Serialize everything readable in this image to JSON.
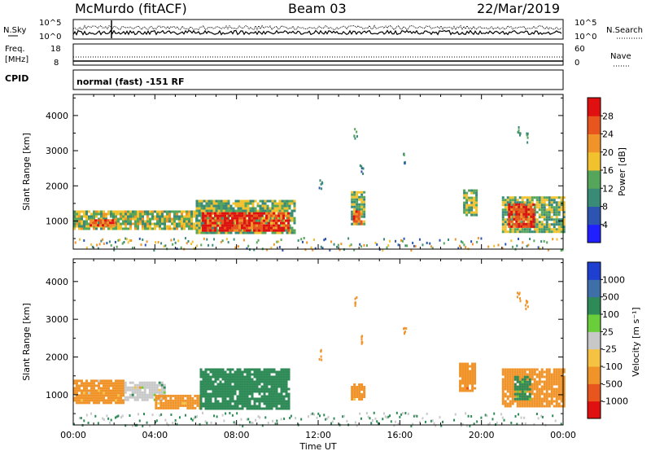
{
  "header": {
    "station": "McMurdo (fitACF)",
    "beam": "Beam 03",
    "date": "22/Mar/2019"
  },
  "top_panels": {
    "nsky_label": "N.Sky",
    "nsky_hi": "10^5",
    "nsky_lo": "10^0",
    "nsearch_label": "N.Search",
    "nsearch_hi": "10^5",
    "nsearch_lo": "10^0",
    "freq_label": "Freq.",
    "freq_unit": "[MHz]",
    "freq_hi": "18",
    "freq_lo": "8",
    "nave_label": "Nave",
    "nave_hi": "60",
    "nave_lo": "0",
    "cpid_label": "CPID",
    "cpid_text": "normal (fast) -151 RF"
  },
  "x_axis": {
    "label": "Time UT",
    "ticks": [
      "00:00",
      "04:00",
      "08:00",
      "12:00",
      "16:00",
      "20:00",
      "00:00"
    ],
    "range_hours": [
      0,
      24
    ]
  },
  "chart_data": [
    {
      "type": "heatmap",
      "name": "power",
      "ylabel": "Slant Range [km]",
      "y_ticks": [
        1000,
        2000,
        3000,
        4000
      ],
      "ylim": [
        200,
        4600
      ],
      "xlim": [
        0,
        24
      ],
      "colorbar": {
        "label": "Power [dB]",
        "ticks": [
          "4",
          "8",
          "12",
          "16",
          "20",
          "24",
          "28"
        ],
        "colors": [
          "#1f1fff",
          "#2d54b0",
          "#3a8a78",
          "#55a55a",
          "#f2c12e",
          "#f0942a",
          "#e8551d",
          "#e01010"
        ]
      },
      "regions": [
        {
          "t0": 0.0,
          "t1": 6.0,
          "r0": 800,
          "r1": 1300,
          "v": 16
        },
        {
          "t0": 0.8,
          "t1": 2.0,
          "r0": 850,
          "r1": 1050,
          "v": 26
        },
        {
          "t0": 6.0,
          "t1": 10.8,
          "r0": 650,
          "r1": 1600,
          "v": 14
        },
        {
          "t0": 6.3,
          "t1": 10.5,
          "r0": 700,
          "r1": 1250,
          "v": 28
        },
        {
          "t0": 13.6,
          "t1": 14.3,
          "r0": 900,
          "r1": 1850,
          "v": 14
        },
        {
          "t0": 13.7,
          "t1": 14.1,
          "r0": 950,
          "r1": 1300,
          "v": 24
        },
        {
          "t0": 19.1,
          "t1": 19.8,
          "r0": 1150,
          "r1": 1900,
          "v": 14
        },
        {
          "t0": 21.0,
          "t1": 24.0,
          "r0": 700,
          "r1": 1700,
          "v": 14
        },
        {
          "t0": 21.3,
          "t1": 22.5,
          "r0": 850,
          "r1": 1500,
          "v": 28
        }
      ]
    },
    {
      "type": "heatmap",
      "name": "velocity",
      "ylabel": "Slant Range [km]",
      "y_ticks": [
        1000,
        2000,
        3000,
        4000
      ],
      "ylim": [
        200,
        4600
      ],
      "xlim": [
        0,
        24
      ],
      "colorbar": {
        "label": "Velocity [m s⁻¹]",
        "ticks": [
          "1000",
          "500",
          "100",
          "25",
          "-25",
          "-100",
          "-500",
          "-1000"
        ],
        "colors": [
          "#1f3fd0",
          "#3f6fa8",
          "#2e8b57",
          "#6acd3a",
          "#c8c8c8",
          "#f5c242",
          "#f0942a",
          "#e8551d",
          "#e01010"
        ]
      },
      "regions": [
        {
          "t0": 0.0,
          "t1": 2.5,
          "r0": 800,
          "r1": 1400,
          "v": -150
        },
        {
          "t0": 2.5,
          "t1": 4.5,
          "r0": 850,
          "r1": 1350,
          "v": 20
        },
        {
          "t0": 4.0,
          "t1": 6.2,
          "r0": 650,
          "r1": 1000,
          "v": -150
        },
        {
          "t0": 6.2,
          "t1": 10.6,
          "r0": 600,
          "r1": 1700,
          "v": 300
        },
        {
          "t0": 13.6,
          "t1": 14.2,
          "r0": 900,
          "r1": 1300,
          "v": -200
        },
        {
          "t0": 18.9,
          "t1": 19.7,
          "r0": 1100,
          "r1": 1850,
          "v": -400
        },
        {
          "t0": 21.0,
          "t1": 24.0,
          "r0": 700,
          "r1": 1700,
          "v": -250
        },
        {
          "t0": 21.6,
          "t1": 22.4,
          "r0": 900,
          "r1": 1500,
          "v": 150
        }
      ]
    }
  ]
}
